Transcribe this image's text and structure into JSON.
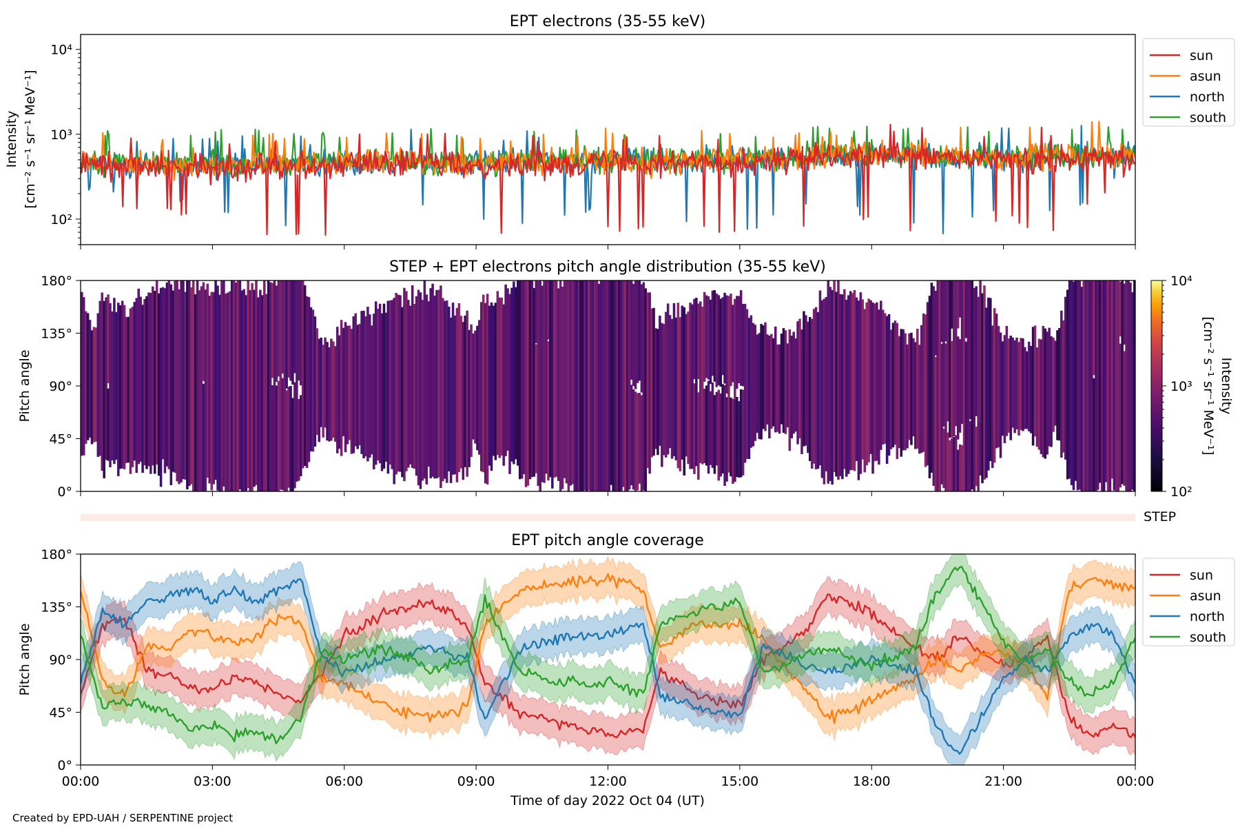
{
  "colors": {
    "sun": "#d62728",
    "asun": "#ff7f0e",
    "north": "#1f77b4",
    "south": "#2ca02c",
    "pad_fill": "#6b2a6e",
    "step_band": "#fdece6"
  },
  "credit": "Created by EPD-UAH / SERPENTINE project",
  "chart_data": [
    {
      "type": "line",
      "title": "EPT electrons (35-55 keV)",
      "ylabel_line1": "Intensity",
      "ylabel_line2": "[cm⁻² s⁻¹ sr⁻¹ MeV⁻¹]",
      "yscale": "log",
      "ylim": [
        50,
        15000
      ],
      "yticks": [
        {
          "value": 100,
          "label": "10²"
        },
        {
          "value": 1000,
          "label": "10³"
        },
        {
          "value": 10000,
          "label": "10⁴"
        }
      ],
      "xlim": [
        0,
        24
      ],
      "legend": {
        "placement": "outside-right-top",
        "entries": [
          "sun",
          "asun",
          "north",
          "south"
        ]
      },
      "series": [
        {
          "name": "sun",
          "x": [
            0,
            1.5,
            3,
            4.5,
            6,
            7.5,
            9,
            10.5,
            12,
            13.5,
            15,
            16.5,
            18,
            19.5,
            21,
            22.5,
            24
          ],
          "values": [
            440,
            420,
            400,
            430,
            450,
            470,
            430,
            450,
            480,
            460,
            470,
            520,
            560,
            520,
            500,
            520,
            540
          ],
          "spikes_min": [
            150,
            110,
            95,
            60,
            55,
            50,
            50,
            60,
            70,
            80,
            55,
            75,
            95,
            50,
            90,
            50,
            300
          ]
        },
        {
          "name": "asun",
          "x": [
            0,
            1.5,
            3,
            4.5,
            6,
            7.5,
            9,
            10.5,
            12,
            13.5,
            15,
            16.5,
            18,
            19.5,
            21,
            22.5,
            24
          ],
          "values": [
            450,
            430,
            410,
            440,
            460,
            480,
            450,
            460,
            500,
            480,
            490,
            540,
            570,
            540,
            510,
            560,
            560
          ],
          "spikes_max": [
            900,
            850,
            800,
            900,
            900,
            1000,
            900,
            950,
            900,
            950,
            900,
            1000,
            1000,
            950,
            950,
            1600,
            1100
          ]
        },
        {
          "name": "north",
          "x": [
            0,
            1.5,
            3,
            4.5,
            6,
            7.5,
            9,
            10.5,
            12,
            13.5,
            15,
            16.5,
            18,
            19.5,
            21,
            22.5,
            24
          ],
          "values": [
            460,
            440,
            420,
            450,
            470,
            480,
            460,
            470,
            500,
            490,
            500,
            550,
            580,
            560,
            530,
            560,
            570
          ],
          "spikes_min": [
            200,
            150,
            130,
            60,
            150,
            120,
            100,
            70,
            120,
            100,
            55,
            120,
            110,
            55,
            110,
            100,
            300
          ]
        },
        {
          "name": "south",
          "x": [
            0,
            1.5,
            3,
            4.5,
            6,
            7.5,
            9,
            10.5,
            12,
            13.5,
            15,
            16.5,
            18,
            19.5,
            21,
            22.5,
            24
          ],
          "values": [
            470,
            450,
            430,
            460,
            480,
            490,
            470,
            480,
            510,
            500,
            510,
            560,
            590,
            570,
            540,
            570,
            580
          ],
          "spikes_max": [
            1000,
            950,
            1100,
            1300,
            1000,
            1000,
            1050,
            1100,
            1050,
            1100,
            1000,
            1100,
            1250,
            1150,
            1200,
            1200,
            1250
          ]
        }
      ]
    },
    {
      "type": "heatmap",
      "title": "STEP + EPT electrons pitch angle distribution (35-55 keV)",
      "ylabel": "Pitch angle",
      "ylim": [
        0,
        180
      ],
      "yticks": [
        "0°",
        "45°",
        "90°",
        "135°",
        "180°"
      ],
      "xlim": [
        0,
        24
      ],
      "colorbar": {
        "scale": "log",
        "range": [
          100,
          10000
        ],
        "ticks": [
          {
            "value": 100,
            "label": "10²"
          },
          {
            "value": 1000,
            "label": "10³"
          },
          {
            "value": 10000,
            "label": "10⁴"
          }
        ],
        "label_line1": "Intensity",
        "label_line2": "[cm⁻² s⁻¹ sr⁻¹ MeV⁻¹]"
      },
      "coverage_from": "EPT pitch angle coverage",
      "typical_intensity": 450
    },
    {
      "type": "area",
      "label": "STEP",
      "note": "empty STEP coverage band"
    },
    {
      "type": "line",
      "title": "EPT pitch angle coverage",
      "ylabel": "Pitch angle",
      "xlabel": "Time of day 2022 Oct 04 (UT)",
      "ylim": [
        0,
        180
      ],
      "yticks": [
        "0°",
        "45°",
        "90°",
        "135°",
        "180°"
      ],
      "xlim": [
        0,
        24
      ],
      "xticks": [
        "00:00",
        "03:00",
        "06:00",
        "09:00",
        "12:00",
        "15:00",
        "18:00",
        "21:00",
        "00:00"
      ],
      "legend": {
        "placement": "outside-right-top",
        "entries": [
          "sun",
          "asun",
          "north",
          "south"
        ]
      },
      "band_halfwidth_deg": 15,
      "series": [
        {
          "name": "sun",
          "x": [
            0,
            0.5,
            1,
            1.5,
            2,
            2.5,
            3,
            3.5,
            4,
            4.5,
            5,
            5.5,
            6,
            7,
            8,
            8.8,
            9.2,
            10,
            11,
            12,
            12.8,
            13.2,
            14,
            15,
            15.5,
            16,
            16.5,
            17,
            18,
            19,
            19.5,
            20,
            20.5,
            21,
            21.5,
            22,
            22.5,
            23,
            23.5,
            24
          ],
          "values": [
            60,
            120,
            125,
            80,
            80,
            65,
            65,
            75,
            70,
            60,
            55,
            80,
            110,
            130,
            140,
            120,
            70,
            45,
            35,
            25,
            30,
            80,
            60,
            50,
            90,
            100,
            115,
            145,
            130,
            100,
            90,
            110,
            95,
            85,
            90,
            110,
            40,
            25,
            35,
            25
          ]
        },
        {
          "name": "asun",
          "x": [
            0,
            0.5,
            1,
            1.5,
            2,
            2.5,
            3,
            3.5,
            4,
            4.5,
            5,
            5.5,
            6,
            7,
            8,
            8.8,
            9.2,
            10,
            11,
            12,
            12.8,
            13.2,
            14,
            15,
            15.5,
            16,
            16.5,
            17,
            18,
            19,
            19.5,
            20,
            20.5,
            21,
            21.5,
            22,
            22.5,
            23,
            23.5,
            24
          ],
          "values": [
            150,
            70,
            60,
            100,
            100,
            115,
            110,
            105,
            110,
            125,
            120,
            75,
            70,
            50,
            40,
            50,
            120,
            150,
            155,
            160,
            150,
            100,
            120,
            120,
            110,
            85,
            65,
            40,
            55,
            75,
            90,
            80,
            95,
            95,
            85,
            60,
            150,
            160,
            155,
            150
          ]
        },
        {
          "name": "north",
          "x": [
            0,
            0.5,
            1,
            1.5,
            2,
            2.5,
            3,
            3.5,
            4,
            4.5,
            5,
            5.5,
            6,
            7,
            8,
            8.8,
            9.2,
            10,
            11,
            12,
            12.8,
            13.2,
            14,
            15,
            15.5,
            16,
            16.5,
            17,
            18,
            19,
            19.5,
            20,
            20.5,
            21,
            21.5,
            22,
            22.5,
            23,
            23.5,
            24
          ],
          "values": [
            70,
            130,
            120,
            140,
            145,
            150,
            140,
            150,
            140,
            150,
            160,
            90,
            80,
            90,
            100,
            90,
            40,
            100,
            110,
            110,
            120,
            60,
            50,
            40,
            100,
            95,
            85,
            80,
            90,
            80,
            30,
            10,
            40,
            75,
            90,
            80,
            110,
            120,
            110,
            70
          ]
        },
        {
          "name": "south",
          "x": [
            0,
            0.5,
            1,
            1.5,
            2,
            2.5,
            3,
            3.5,
            4,
            4.5,
            5,
            5.5,
            6,
            7,
            8,
            8.8,
            9.2,
            10,
            11,
            12,
            12.8,
            13.2,
            14,
            15,
            15.5,
            16,
            16.5,
            17,
            18,
            19,
            19.5,
            20,
            20.5,
            21,
            21.5,
            22,
            22.5,
            23,
            23.5,
            24
          ],
          "values": [
            110,
            50,
            55,
            50,
            45,
            30,
            35,
            25,
            30,
            20,
            40,
            100,
            90,
            100,
            80,
            90,
            140,
            80,
            70,
            70,
            60,
            120,
            130,
            140,
            80,
            85,
            95,
            100,
            85,
            100,
            150,
            170,
            140,
            105,
            90,
            100,
            70,
            60,
            70,
            110
          ]
        }
      ]
    }
  ]
}
